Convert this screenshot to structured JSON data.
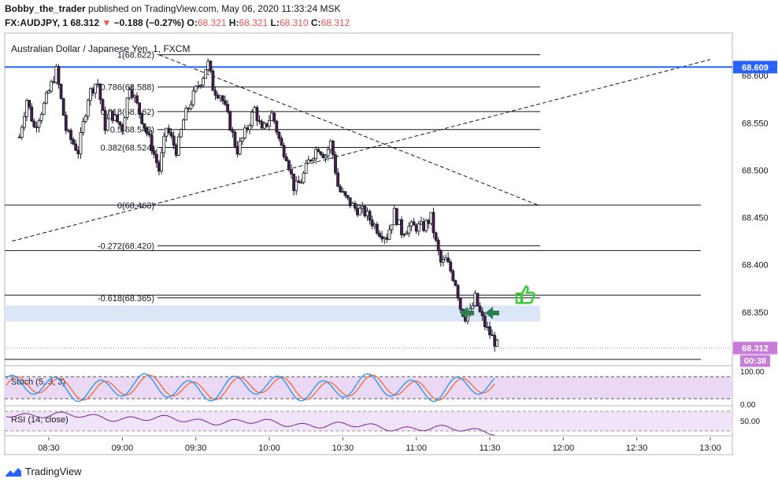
{
  "header": {
    "user": "Bobby_the_trader",
    "published": "published on TradingView.com, May 06, 2020 11:33:24 MSK",
    "symbol": "FX:AUDJPY, 1",
    "last": "68.312",
    "down_arrow": "▼",
    "change": "−0.188 (−0.27%)",
    "o_label": "O:",
    "o_val": "68.321",
    "h_label": "H:",
    "h_val": "68.321",
    "l_label": "L:",
    "l_val": "68.310",
    "c_label": "C:",
    "c_val": "68.312"
  },
  "footer": {
    "brand": "TradingView"
  },
  "colors": {
    "up": "#ffffff",
    "down": "#4a1e4a",
    "price_line": "#2962ff",
    "last": "#c77dd7",
    "stoch_k": "#2196f3",
    "stoch_d": "#ef6c3a",
    "rsi": "#7b1fa2",
    "band": "#dbe6f7",
    "thumb": "#33cc33",
    "arrow": "#2e7d4f"
  },
  "chart_data": {
    "type": "candlestick",
    "title": "Australian Dollar / Japanese Yen, 1, FXCM",
    "x_ticks": [
      "08:30",
      "09:00",
      "09:30",
      "10:00",
      "10:30",
      "11:00",
      "11:30",
      "12:00",
      "12:30",
      "13:00"
    ],
    "y_ticks": [
      "68.600",
      "68.550",
      "68.500",
      "68.450",
      "68.400",
      "68.350"
    ],
    "ylim": [
      68.295,
      68.645
    ],
    "price_path": [
      [
        8.3,
        68.535
      ],
      [
        8.35,
        68.575
      ],
      [
        8.4,
        68.545
      ],
      [
        8.47,
        68.57
      ],
      [
        8.55,
        68.605
      ],
      [
        8.62,
        68.54
      ],
      [
        8.7,
        68.52
      ],
      [
        8.77,
        68.58
      ],
      [
        8.83,
        68.595
      ],
      [
        8.88,
        68.545
      ],
      [
        8.92,
        68.56
      ],
      [
        9.0,
        68.545
      ],
      [
        9.05,
        68.59
      ],
      [
        9.12,
        68.56
      ],
      [
        9.2,
        68.525
      ],
      [
        9.25,
        68.5
      ],
      [
        9.3,
        68.545
      ],
      [
        9.37,
        68.52
      ],
      [
        9.42,
        68.555
      ],
      [
        9.5,
        68.585
      ],
      [
        9.55,
        68.6
      ],
      [
        9.58,
        68.615
      ],
      [
        9.62,
        68.585
      ],
      [
        9.67,
        68.58
      ],
      [
        9.72,
        68.555
      ],
      [
        9.78,
        68.52
      ],
      [
        9.85,
        68.545
      ],
      [
        9.9,
        68.565
      ],
      [
        9.95,
        68.54
      ],
      [
        10.02,
        68.56
      ],
      [
        10.08,
        68.525
      ],
      [
        10.12,
        68.515
      ],
      [
        10.17,
        68.48
      ],
      [
        10.22,
        68.49
      ],
      [
        10.27,
        68.51
      ],
      [
        10.33,
        68.525
      ],
      [
        10.38,
        68.515
      ],
      [
        10.42,
        68.53
      ],
      [
        10.47,
        68.48
      ],
      [
        10.52,
        68.47
      ],
      [
        10.58,
        68.46
      ],
      [
        10.65,
        68.455
      ],
      [
        10.7,
        68.445
      ],
      [
        10.75,
        68.435
      ],
      [
        10.8,
        68.43
      ],
      [
        10.85,
        68.455
      ],
      [
        10.9,
        68.435
      ],
      [
        10.95,
        68.44
      ],
      [
        11.0,
        68.44
      ],
      [
        11.05,
        68.44
      ],
      [
        11.1,
        68.45
      ],
      [
        11.13,
        68.425
      ],
      [
        11.17,
        68.4
      ],
      [
        11.2,
        68.405
      ],
      [
        11.23,
        68.395
      ],
      [
        11.27,
        68.38
      ],
      [
        11.3,
        68.355
      ],
      [
        11.33,
        68.345
      ],
      [
        11.37,
        68.35
      ],
      [
        11.4,
        68.365
      ],
      [
        11.43,
        68.35
      ],
      [
        11.47,
        68.335
      ],
      [
        11.52,
        68.322
      ],
      [
        11.56,
        68.312
      ]
    ],
    "fib_levels": [
      {
        "label": "1(68.622)",
        "value": 68.622
      },
      {
        "label": "0.786(68.588)",
        "value": 68.588
      },
      {
        "label": "0.618(68.562)",
        "value": 68.562
      },
      {
        "label": "0.5(68.543)",
        "value": 68.543
      },
      {
        "label": "0.382(68.524)",
        "value": 68.524
      },
      {
        "label": "0(68.463)",
        "value": 68.463
      },
      {
        "label": "-0.272(68.420)",
        "value": 68.42
      },
      {
        "label": "-0.618(68.365)",
        "value": 68.365
      }
    ],
    "horizontal_lines": [
      68.463,
      68.415,
      68.368,
      68.3
    ],
    "support_zone": [
      68.34,
      68.357
    ],
    "resistance_price": 68.609,
    "resistance_label": "68.609",
    "last_price": 68.312,
    "last_label": "68.312",
    "countdown": "00:38",
    "trendline_down": [
      [
        9.25,
        68.622
      ],
      [
        11.83,
        68.463
      ]
    ],
    "trendline_up": [
      [
        8.25,
        68.425
      ],
      [
        13.0,
        68.617
      ]
    ],
    "stoch": {
      "label": "Stoch (5, 3, 3)",
      "ticks": [
        "100.00",
        "0.00"
      ],
      "band": [
        20,
        80
      ]
    },
    "rsi": {
      "label": "RSI (14, close)",
      "ticks": [
        "50.00"
      ],
      "band": [
        30,
        70
      ]
    }
  }
}
